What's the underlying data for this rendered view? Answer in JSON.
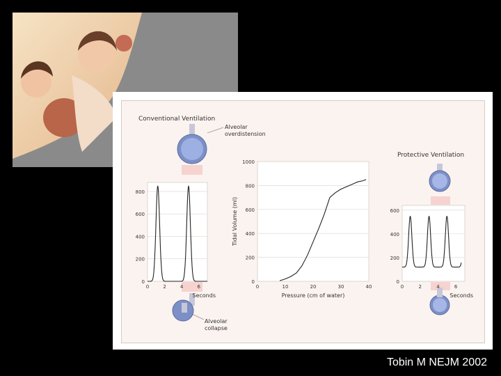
{
  "slide": {
    "citation": "Tobin M NEJM 2002",
    "photo_alt": "children blowing up balloons"
  },
  "figure": {
    "conventional_title": "Conventional Ventilation",
    "protective_title": "Protective Ventilation",
    "label_overdistension_1": "Alveolar",
    "label_overdistension_2": "overdistension",
    "label_collapse_1": "Alveolar",
    "label_collapse_2": "collapse"
  },
  "chart_data": [
    {
      "id": "conventional",
      "type": "line",
      "title": "",
      "xlabel": "Seconds",
      "ylabel": "",
      "xlim": [
        0,
        7
      ],
      "ylim": [
        0,
        880
      ],
      "xticks": [
        0,
        2,
        4,
        6
      ],
      "yticks": [
        0,
        200,
        400,
        600,
        800
      ],
      "peaks": [
        1.2,
        4.8
      ],
      "peak_value": 850,
      "peak_width": 0.45,
      "grid": true
    },
    {
      "id": "pressure-volume",
      "type": "line",
      "title": "",
      "xlabel": "Pressure (cm of water)",
      "ylabel": "Tidal Volume (ml)",
      "xlim": [
        0,
        40
      ],
      "ylim": [
        0,
        1000
      ],
      "xticks": [
        0,
        10,
        20,
        30,
        40
      ],
      "yticks": [
        0,
        200,
        400,
        600,
        800,
        1000
      ],
      "x": [
        8,
        10,
        12,
        14,
        16,
        18,
        20,
        22,
        24,
        26,
        28,
        30,
        32,
        34,
        36,
        38,
        39
      ],
      "y": [
        5,
        20,
        40,
        70,
        130,
        220,
        330,
        440,
        560,
        700,
        740,
        770,
        790,
        810,
        830,
        840,
        850
      ],
      "grid": true
    },
    {
      "id": "protective",
      "type": "line",
      "title": "",
      "xlabel": "Seconds",
      "ylabel": "",
      "xlim": [
        0,
        7
      ],
      "ylim": [
        0,
        640
      ],
      "xticks": [
        0,
        2,
        4,
        6
      ],
      "yticks": [
        0,
        200,
        400,
        600
      ],
      "peaks": [
        0.9,
        3.0,
        5.0,
        7.0
      ],
      "peak_value": 550,
      "baseline": 120,
      "peak_width": 0.38,
      "grid": true
    }
  ]
}
